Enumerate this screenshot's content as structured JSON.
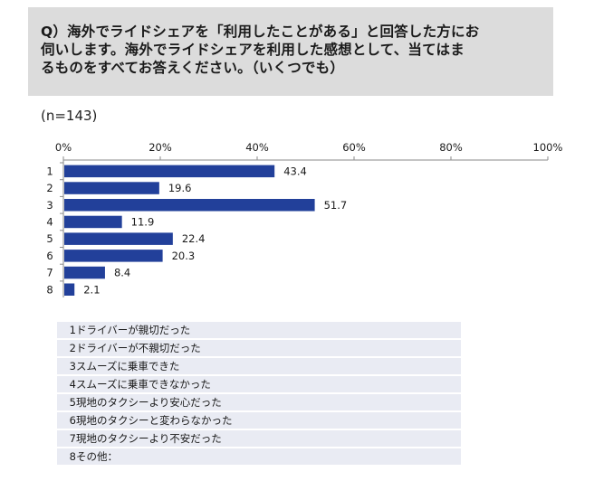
{
  "question": {
    "text": "Q）海外でライドシェアを「利用したことがある」と回答した方にお\n伺いします。海外でライドシェアを利用した感想として、当てはま\nるものをすべてお答えください。（いくつでも）"
  },
  "sample_size": "(n=143)",
  "chart_data": {
    "type": "bar",
    "orientation": "horizontal",
    "categories": [
      "1",
      "2",
      "3",
      "4",
      "5",
      "6",
      "7",
      "8"
    ],
    "values": [
      43.4,
      19.6,
      51.7,
      11.9,
      22.4,
      20.3,
      8.4,
      2.1
    ],
    "value_labels": [
      "43.4",
      "19.6",
      "51.7",
      "11.9",
      "22.4",
      "20.3",
      "8.4",
      "2.1"
    ],
    "xlim": [
      0,
      100
    ],
    "ticks": [
      0,
      20,
      40,
      60,
      80,
      100
    ],
    "tick_labels": [
      "0%",
      "20%",
      "40%",
      "60%",
      "80%",
      "100%"
    ],
    "axis_position": "top",
    "grid": false,
    "bar_color": "#22409a"
  },
  "legend": {
    "items": [
      {
        "code": "1",
        "label": "ドライバーが親切だった"
      },
      {
        "code": "2",
        "label": "ドライバーが不親切だった"
      },
      {
        "code": "3",
        "label": "スムーズに乗車できた"
      },
      {
        "code": "4",
        "label": "スムーズに乗車できなかった"
      },
      {
        "code": "5",
        "label": "現地のタクシーより安心だった"
      },
      {
        "code": "6",
        "label": "現地のタクシーと変わらなかった"
      },
      {
        "code": "7",
        "label": "現地のタクシーより不安だった"
      },
      {
        "code": "8",
        "label": "その他："
      }
    ]
  }
}
